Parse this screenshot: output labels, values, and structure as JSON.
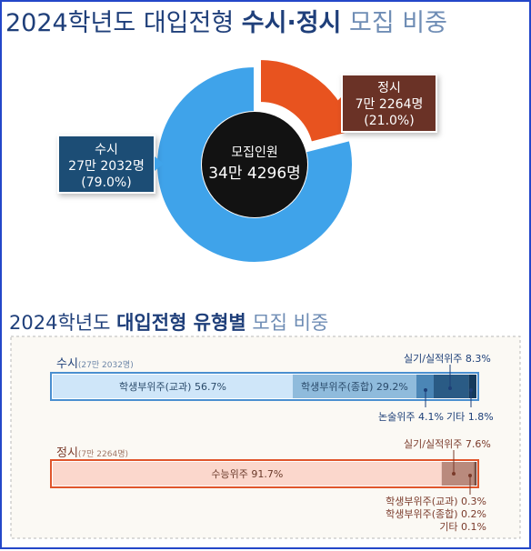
{
  "title": {
    "part1": "2024학년도 대입전형 ",
    "part2": "수시·정시",
    "part3": " 모집 비중"
  },
  "colors": {
    "susi": "#3fa3ea",
    "jeongsi": "#e8531f",
    "susi_label_box": "#1f4d74",
    "jeongsi_label_box": "#6b3226",
    "accent_blue": "#1d3f78",
    "accent_brown": "#7a3a2a"
  },
  "chart_data": [
    {
      "type": "pie",
      "variant": "donut",
      "center_label": "모집인원",
      "center_value": "34만 4296명",
      "slices": [
        {
          "key": "susi",
          "name": "수시",
          "count_text": "27만 2032명",
          "percent_text": "(79.0%)",
          "value": 79.0
        },
        {
          "key": "jeongsi",
          "name": "정시",
          "count_text": "7만 2264명",
          "percent_text": "(21.0%)",
          "value": 21.0
        }
      ]
    },
    {
      "type": "bar",
      "variant": "stacked-horizontal",
      "title": {
        "part1": "2024학년도 ",
        "part2": "대입전형 유형별",
        "part3": " 모집 비중"
      },
      "bars": [
        {
          "key": "susi",
          "name": "수시",
          "sub": "(27만 2032명)",
          "segments": [
            {
              "label": "학생부위주(교과) 56.7%",
              "value": 56.7,
              "color": "#cfe6f9"
            },
            {
              "label": "학생부위주(종합) 29.2%",
              "value": 29.2,
              "color": "#8fbbdc"
            },
            {
              "label": "논술위주 4.1%",
              "value": 4.1,
              "color": "#4b86b6"
            },
            {
              "label": "실기/실적위주 8.3%",
              "value": 8.3,
              "color": "#2a5b85"
            },
            {
              "label": "기타 1.8%",
              "value": 1.8,
              "color": "#153a5c"
            }
          ]
        },
        {
          "key": "jeongsi",
          "name": "정시",
          "sub": "(7만 2264명)",
          "segments": [
            {
              "label": "수능위주 91.7%",
              "value": 91.7,
              "color": "#fbd7cc"
            },
            {
              "label": "실기/실적위주 7.6%",
              "value": 7.6,
              "color": "#b98a7d"
            },
            {
              "label": "학생부위주(교과) 0.3%",
              "value": 0.3,
              "color": "#8a5a4d"
            },
            {
              "label": "학생부위주(종합) 0.2%",
              "value": 0.2,
              "color": "#6a3e33"
            },
            {
              "label": "기타 0.1%",
              "value": 0.1,
              "color": "#4a2a22"
            }
          ]
        }
      ]
    }
  ]
}
